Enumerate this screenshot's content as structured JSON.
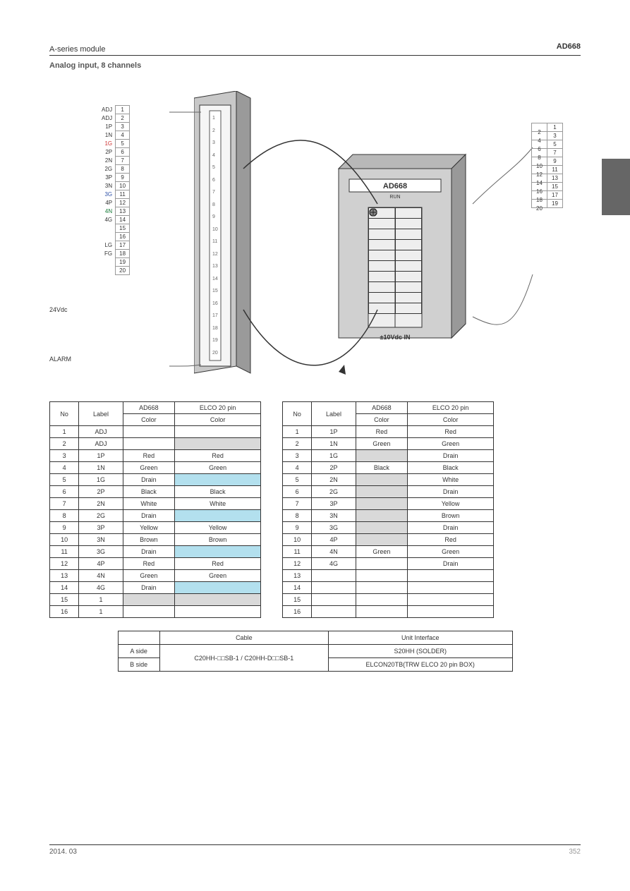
{
  "header": {
    "series": "A-series module",
    "title": "AD668",
    "subtitle1": "Analog input",
    "subtitle2": "8 channels"
  },
  "sideTab": {
    "bg": "#666666"
  },
  "leftPins": {
    "rows": [
      {
        "lbl": "ADJ",
        "n": "1"
      },
      {
        "lbl": "ADJ",
        "n": "2"
      },
      {
        "lbl": "1P",
        "n": "3"
      },
      {
        "lbl": "1N",
        "n": "4"
      },
      {
        "lbl": "1G",
        "n": "5",
        "c": "#cc3333"
      },
      {
        "lbl": "2P",
        "n": "6"
      },
      {
        "lbl": "2N",
        "n": "7"
      },
      {
        "lbl": "2G",
        "n": "8"
      },
      {
        "lbl": "3P",
        "n": "9"
      },
      {
        "lbl": "3N",
        "n": "10"
      },
      {
        "lbl": "3G",
        "n": "11",
        "c": "#3355aa"
      },
      {
        "lbl": "4P",
        "n": "12"
      },
      {
        "lbl": "4N",
        "n": "13",
        "c": "#117733"
      },
      {
        "lbl": "4G",
        "n": "14"
      },
      {
        "lbl": "",
        "n": "15"
      },
      {
        "lbl": "",
        "n": "16"
      },
      {
        "lbl": "LG",
        "n": "17"
      },
      {
        "lbl": "FG",
        "n": "18"
      },
      {
        "lbl": "",
        "n": "19"
      },
      {
        "lbl": "",
        "n": "20"
      }
    ]
  },
  "rightPins": [
    [
      "2",
      "1"
    ],
    [
      "4",
      "3"
    ],
    [
      "6",
      "5"
    ],
    [
      "8",
      "7"
    ],
    [
      "10",
      "9"
    ],
    [
      "12",
      "11"
    ],
    [
      "14",
      "13"
    ],
    [
      "16",
      "15"
    ],
    [
      "18",
      "17"
    ],
    [
      "20",
      "19"
    ]
  ],
  "leftExtra": {
    "pwr": "24Vdc",
    "alarm": "ALARM"
  },
  "deviceRightLabel": "AD668",
  "deviceRightBottom": "±10Vdc IN",
  "tableA": {
    "headers": [
      "No",
      "Label",
      "Color",
      "Color"
    ],
    "headerLine2": [
      "AD668",
      "ELCO 20 pin"
    ],
    "rows": [
      {
        "n": "1",
        "l": "ADJ",
        "a": "",
        "b": ""
      },
      {
        "n": "2",
        "l": "ADJ",
        "a": "",
        "b": "",
        "bshade": "gray"
      },
      {
        "n": "3",
        "l": "1P",
        "a": "Red",
        "b": "Red"
      },
      {
        "n": "4",
        "l": "1N",
        "a": "Green",
        "b": "Green"
      },
      {
        "n": "5",
        "l": "1G",
        "a": "Drain",
        "b": "",
        "bshade": "blue"
      },
      {
        "n": "6",
        "l": "2P",
        "a": "Black",
        "b": "Black"
      },
      {
        "n": "7",
        "l": "2N",
        "a": "White",
        "b": "White"
      },
      {
        "n": "8",
        "l": "2G",
        "a": "Drain",
        "b": "",
        "bshade": "blue"
      },
      {
        "n": "9",
        "l": "3P",
        "a": "Yellow",
        "b": "Yellow"
      },
      {
        "n": "10",
        "l": "3N",
        "a": "Brown",
        "b": "Brown"
      },
      {
        "n": "11",
        "l": "3G",
        "a": "Drain",
        "b": "",
        "bshade": "blue"
      },
      {
        "n": "12",
        "l": "4P",
        "a": "Red",
        "b": "Red"
      },
      {
        "n": "13",
        "l": "4N",
        "a": "Green",
        "b": "Green"
      },
      {
        "n": "14",
        "l": "4G",
        "a": "Drain",
        "b": "",
        "bshade": "blue"
      },
      {
        "n": "15",
        "l": "1",
        "a": "",
        "b": "",
        "ashade": "gray",
        "bshade": "gray"
      },
      {
        "n": "16",
        "l": "1",
        "a": "",
        "b": ""
      }
    ]
  },
  "tableB": {
    "headers": [
      "No",
      "Label",
      "Color",
      "Color"
    ],
    "headerLine2": [
      "AD668",
      "ELCO 20 pin"
    ],
    "rows": [
      {
        "n": "1",
        "l": "1P",
        "a": "Red",
        "b": "Red"
      },
      {
        "n": "2",
        "l": "1N",
        "a": "Green",
        "b": "Green"
      },
      {
        "n": "3",
        "l": "1G",
        "a": "",
        "b": "Drain",
        "ashade": "gray"
      },
      {
        "n": "4",
        "l": "2P",
        "a": "Black",
        "b": "Black"
      },
      {
        "n": "5",
        "l": "2N",
        "a": "",
        "b": "White",
        "ashade": "gray"
      },
      {
        "n": "6",
        "l": "2G",
        "a": "",
        "b": "Drain",
        "ashade": "gray"
      },
      {
        "n": "7",
        "l": "3P",
        "a": "",
        "b": "Yellow",
        "ashade": "gray"
      },
      {
        "n": "8",
        "l": "3N",
        "a": "",
        "b": "Brown",
        "ashade": "gray"
      },
      {
        "n": "9",
        "l": "3G",
        "a": "",
        "b": "Drain",
        "ashade": "gray"
      },
      {
        "n": "10",
        "l": "4P",
        "a": "",
        "b": "Red",
        "ashade": "gray"
      },
      {
        "n": "11",
        "l": "4N",
        "a": "Green",
        "b": "Green"
      },
      {
        "n": "12",
        "l": "4G",
        "a": "",
        "b": "Drain"
      },
      {
        "n": "13",
        "l": "",
        "a": "",
        "b": ""
      },
      {
        "n": "14",
        "l": "",
        "a": "",
        "b": ""
      },
      {
        "n": "15",
        "l": "",
        "a": "",
        "b": ""
      },
      {
        "n": "16",
        "l": "",
        "a": "",
        "b": ""
      }
    ]
  },
  "cableTable": {
    "header": [
      "",
      "Cable",
      "Unit Interface"
    ],
    "rows": [
      [
        "A side",
        "C20HH-□□SB-1 / C20HH-D□□SB-1",
        "S20HH (SOLDER)"
      ],
      [
        "B side",
        "",
        "ELCON20TB(TRW ELCO 20 pin BOX)"
      ]
    ]
  },
  "footer": {
    "date": "2014. 03",
    "page": "352"
  }
}
